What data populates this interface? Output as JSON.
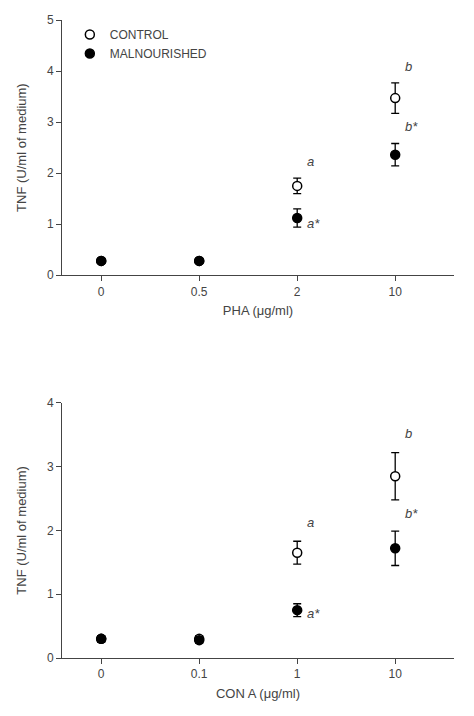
{
  "chart_data": [
    {
      "type": "scatter",
      "xlabel": "PHA (μg/ml)",
      "ylabel": "TNF (U/ml of medium)",
      "categories": [
        "0",
        "0.5",
        "2",
        "10"
      ],
      "ylim": [
        0,
        5
      ],
      "yticks": [
        0,
        1,
        2,
        3,
        4,
        5
      ],
      "grid": false,
      "legend": "upper left",
      "series": [
        {
          "name": "CONTROL",
          "color": "black",
          "marker": "open",
          "values": [
            0.28,
            0.28,
            1.75,
            3.47
          ],
          "errors": [
            0.04,
            0.04,
            0.15,
            0.3
          ]
        },
        {
          "name": "MALNOURISHED",
          "color": "black",
          "marker": "filled",
          "values": [
            0.28,
            0.28,
            1.12,
            2.36
          ],
          "errors": [
            0.04,
            0.04,
            0.18,
            0.22
          ]
        }
      ],
      "annotations": [
        {
          "text": "a",
          "x": "2",
          "y": 2.05
        },
        {
          "text": "a*",
          "x": "2",
          "y": 0.82
        },
        {
          "text": "b",
          "x": "10",
          "y": 3.9
        },
        {
          "text": "b*",
          "x": "10",
          "y": 2.72
        }
      ]
    },
    {
      "type": "scatter",
      "xlabel": "CON A (μg/ml)",
      "ylabel": "TNF (U/ml of medium)",
      "categories": [
        "0",
        "0.1",
        "1",
        "10"
      ],
      "ylim": [
        0,
        4
      ],
      "yticks": [
        0,
        1,
        2,
        3,
        4
      ],
      "grid": false,
      "series": [
        {
          "color": "black",
          "marker": "open",
          "values": [
            0.3,
            0.3,
            1.65,
            2.85
          ],
          "errors": [
            0.05,
            0.05,
            0.18,
            0.37
          ]
        },
        {
          "color": "black",
          "marker": "filled",
          "values": [
            0.3,
            0.28,
            0.75,
            1.72
          ],
          "errors": [
            0.05,
            0.05,
            0.1,
            0.27
          ]
        }
      ],
      "annotations": [
        {
          "text": "a",
          "x": "1",
          "y": 1.97
        },
        {
          "text": "a*",
          "x": "1",
          "y": 0.55
        },
        {
          "text": "b",
          "x": "10",
          "y": 3.37
        },
        {
          "text": "b*",
          "x": "10",
          "y": 2.12
        }
      ]
    }
  ]
}
